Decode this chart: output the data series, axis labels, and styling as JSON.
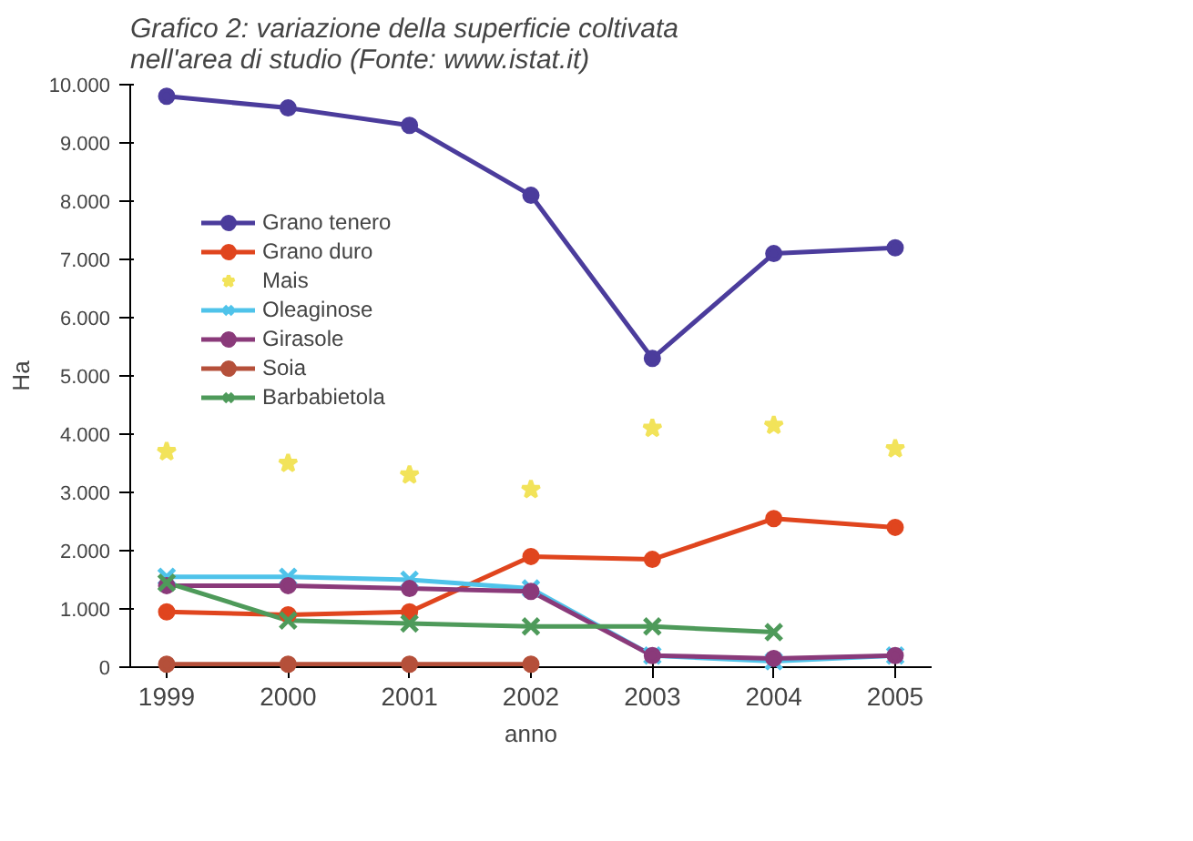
{
  "chart_data": {
    "type": "line",
    "title": "Grafico 2: variazione della superficie coltivata nell'area di studio (Fonte: www.istat.it)",
    "xlabel": "anno",
    "ylabel": "Ha",
    "categories": [
      "1999",
      "2000",
      "2001",
      "2002",
      "2003",
      "2004",
      "2005"
    ],
    "series": [
      {
        "name": "Grano tenero",
        "color": "#4b3c9c",
        "marker": "circle",
        "values": [
          9800,
          9600,
          9300,
          8100,
          5300,
          7100,
          7200
        ]
      },
      {
        "name": "Grano duro",
        "color": "#e0451e",
        "marker": "circle",
        "values": [
          950,
          900,
          950,
          1900,
          1850,
          2550,
          2400
        ]
      },
      {
        "name": "Mais",
        "type": "scatter",
        "color": "#f2e35a",
        "marker": "star",
        "values": [
          3700,
          3500,
          3300,
          3050,
          4100,
          4150,
          3750
        ]
      },
      {
        "name": "Oleaginose",
        "color": "#4fc3ea",
        "marker": "cross",
        "values": [
          1550,
          1550,
          1500,
          1350,
          200,
          100,
          200
        ]
      },
      {
        "name": "Girasole",
        "color": "#8a3a7a",
        "marker": "circle",
        "values": [
          1400,
          1400,
          1350,
          1300,
          200,
          150,
          200
        ]
      },
      {
        "name": "Soia",
        "color": "#b5503a",
        "marker": "circle",
        "values": [
          50,
          50,
          50,
          50,
          null,
          null,
          null
        ]
      },
      {
        "name": "Barbabietola",
        "color": "#4e9a5a",
        "marker": "cross",
        "values": [
          1450,
          800,
          750,
          700,
          700,
          600,
          null
        ]
      }
    ],
    "ylim": [
      0,
      10000
    ],
    "yticks": [
      {
        "value": 0,
        "label": "0"
      },
      {
        "value": 1000,
        "label": "1.000"
      },
      {
        "value": 2000,
        "label": "2.000"
      },
      {
        "value": 3000,
        "label": "3.000"
      },
      {
        "value": 4000,
        "label": "4.000"
      },
      {
        "value": 5000,
        "label": "5.000"
      },
      {
        "value": 6000,
        "label": "6.000"
      },
      {
        "value": 7000,
        "label": "7.000"
      },
      {
        "value": 8000,
        "label": "8.000"
      },
      {
        "value": 9000,
        "label": "9.000"
      },
      {
        "value": 10000,
        "label": "10.000"
      }
    ],
    "grid": false,
    "legend": "left"
  }
}
